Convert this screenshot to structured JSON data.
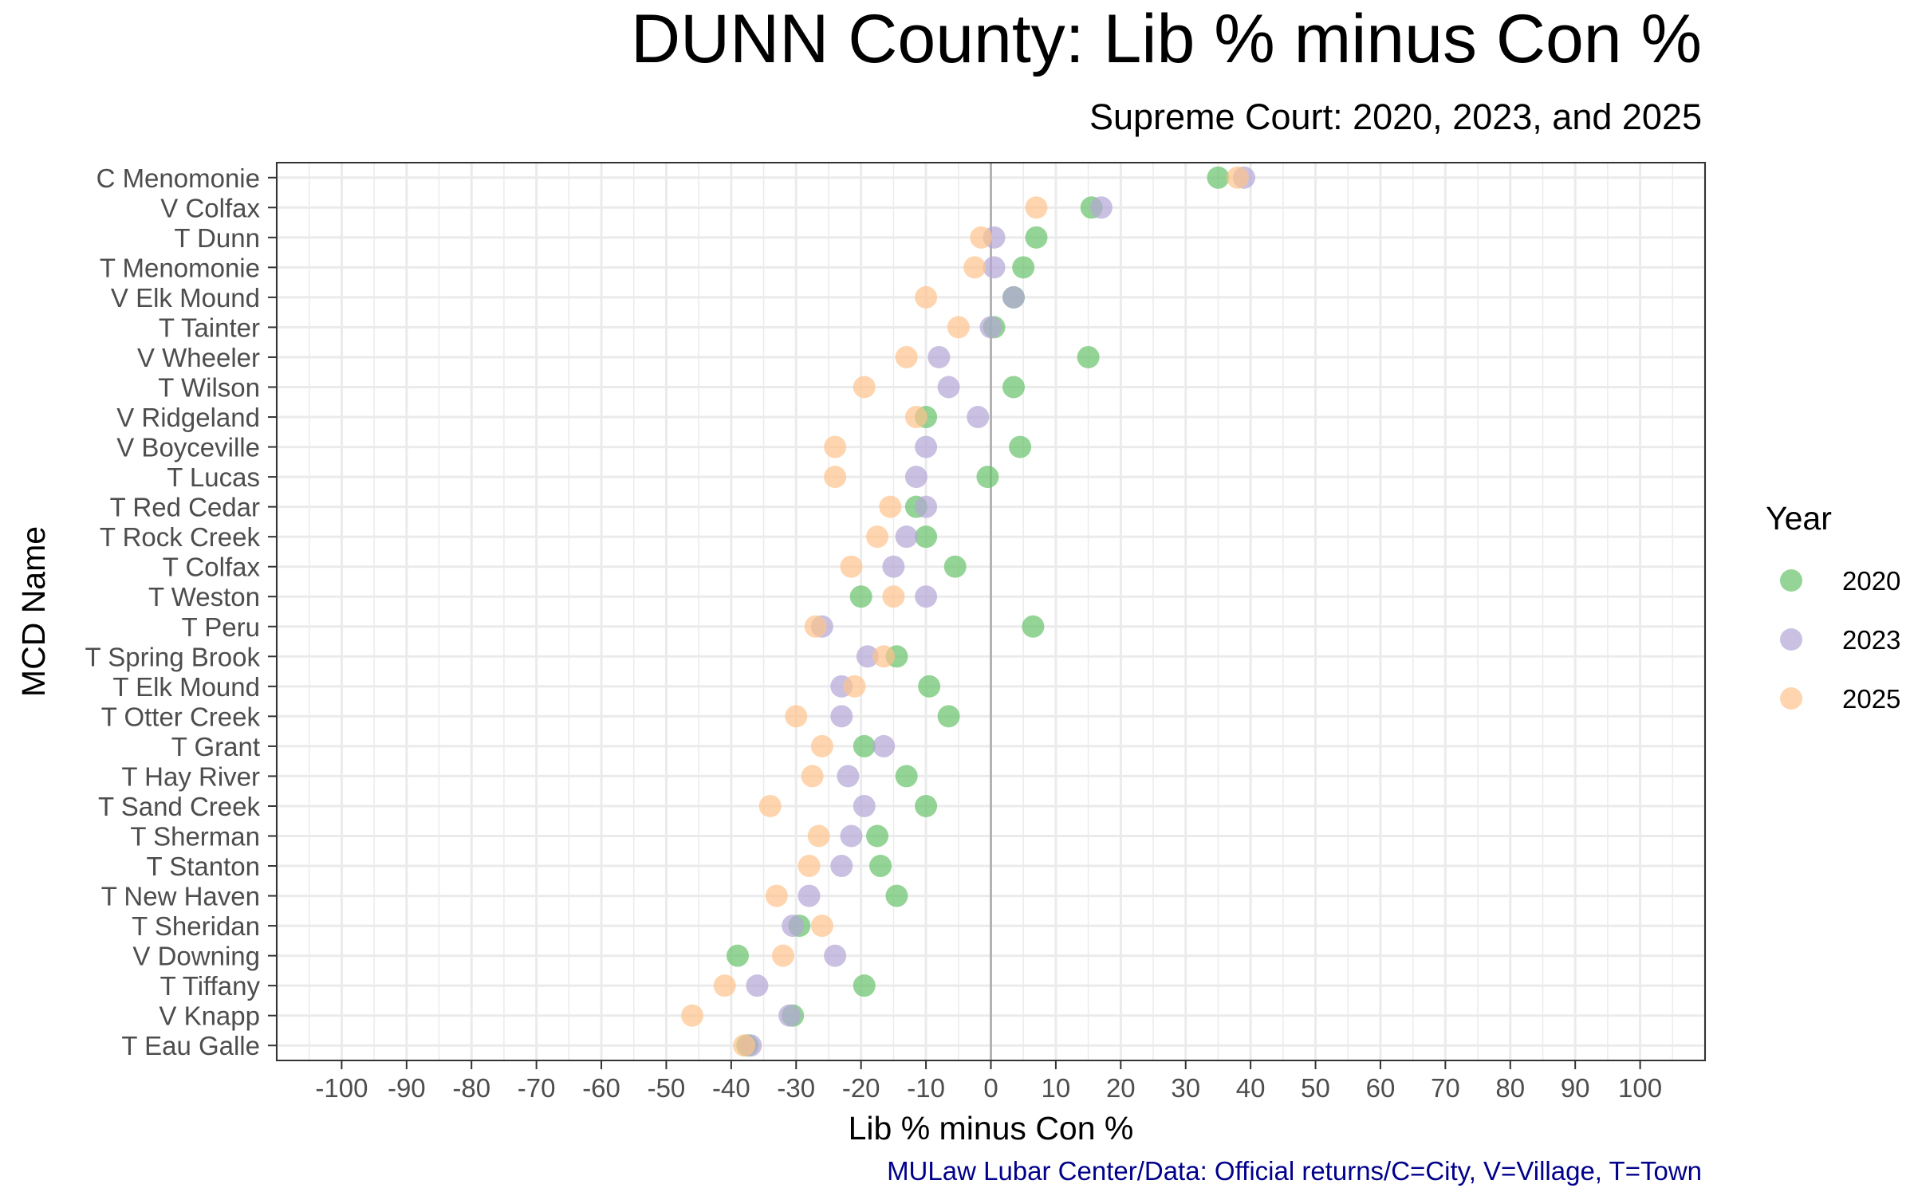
{
  "chart_data": {
    "type": "scatter",
    "title": "DUNN County: Lib % minus Con %",
    "subtitle": "Supreme Court: 2020, 2023, and 2025",
    "caption": "MULaw Lubar Center/Data: Official returns/C=City, V=Village, T=Town",
    "xlabel": "Lib % minus Con %",
    "ylabel": "MCD Name",
    "xlim": [
      -110,
      110
    ],
    "x_ticks": [
      -100,
      -90,
      -80,
      -70,
      -60,
      -50,
      -40,
      -30,
      -20,
      -10,
      0,
      10,
      20,
      30,
      40,
      50,
      60,
      70,
      80,
      90,
      100
    ],
    "reference_line_x": 0,
    "grid": true,
    "legend": {
      "title": "Year",
      "position": "right"
    },
    "categories": [
      "C Menomonie",
      "V Colfax",
      "T Dunn",
      "T Menomonie",
      "V Elk Mound",
      "T Tainter",
      "V Wheeler",
      "T Wilson",
      "V Ridgeland",
      "V Boyceville",
      "T Lucas",
      "T Red Cedar",
      "T Rock Creek",
      "T Colfax",
      "T Weston",
      "T Peru",
      "T Spring Brook",
      "T Elk Mound",
      "T Otter Creek",
      "T Grant",
      "T Hay River",
      "T Sand Creek",
      "T Sherman",
      "T Stanton",
      "T New Haven",
      "T Sheridan",
      "V Downing",
      "T Tiffany",
      "V Knapp",
      "T Eau Galle"
    ],
    "series": [
      {
        "name": "2020",
        "color": "#66c26a",
        "values": [
          35,
          15.5,
          7,
          5,
          3.5,
          0.5,
          15,
          3.5,
          -10,
          4.5,
          -0.5,
          -11.5,
          -10,
          -5.5,
          -20,
          6.5,
          -14.5,
          -9.5,
          -6.5,
          -19.5,
          -13,
          -10,
          -17.5,
          -17,
          -14.5,
          -29.5,
          -39,
          -19.5,
          -30.5,
          -37.5
        ]
      },
      {
        "name": "2023",
        "color": "#b3a6d6",
        "values": [
          39,
          17,
          0.5,
          0.5,
          3.5,
          0,
          -8,
          -6.5,
          -2,
          -10,
          -11.5,
          -10,
          -13,
          -15,
          -10,
          -26,
          -19,
          -23,
          -23,
          -16.5,
          -22,
          -19.5,
          -21.5,
          -23,
          -28,
          -30.5,
          -24,
          -36,
          -31,
          -37
        ]
      },
      {
        "name": "2025",
        "color": "#fdc38c",
        "values": [
          38,
          7,
          -1.5,
          -2.5,
          -10,
          -5,
          -13,
          -19.5,
          -11.5,
          -24,
          -24,
          -15.5,
          -17.5,
          -21.5,
          -15,
          -27,
          -16.5,
          -21,
          -30,
          -26,
          -27.5,
          -34,
          -26.5,
          -28,
          -33,
          -26,
          -32,
          -41,
          -46,
          -38
        ]
      }
    ]
  }
}
